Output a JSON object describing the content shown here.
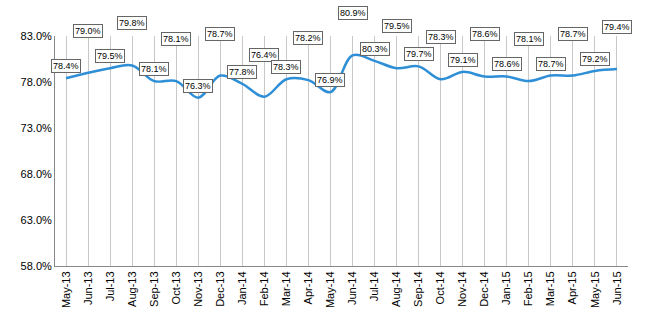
{
  "chart_data": {
    "type": "line",
    "categories": [
      "May-13",
      "Jun-13",
      "Jul-13",
      "Aug-13",
      "Sep-13",
      "Oct-13",
      "Nov-13",
      "Dec-13",
      "Jan-14",
      "Feb-14",
      "Mar-14",
      "Apr-14",
      "May-14",
      "Jun-14",
      "Jul-14",
      "Aug-14",
      "Sep-14",
      "Oct-14",
      "Nov-14",
      "Dec-14",
      "Jan-15",
      "Feb-15",
      "Mar-15",
      "Apr-15",
      "May-15",
      "Jun-15"
    ],
    "values": [
      78.4,
      79.0,
      79.5,
      79.8,
      78.1,
      78.1,
      76.3,
      78.7,
      77.8,
      76.4,
      78.3,
      78.2,
      76.9,
      80.9,
      80.3,
      79.5,
      79.7,
      78.3,
      79.1,
      78.6,
      78.6,
      78.1,
      78.7,
      78.7,
      79.2,
      79.4
    ],
    "value_labels": [
      "78.4%",
      "79.0%",
      "79.5%",
      "79.8%",
      "78.1%",
      "78.1%",
      "76.3%",
      "78.7%",
      "77.8%",
      "76.4%",
      "78.3%",
      "78.2%",
      "76.9%",
      "80.9%",
      "80.3%",
      "79.5%",
      "79.7%",
      "78.3%",
      "79.1%",
      "78.6%",
      "78.6%",
      "78.1%",
      "78.7%",
      "78.7%",
      "79.2%",
      "79.4%"
    ],
    "color": "#2f8fd6",
    "line_style": "smooth",
    "marker": "none",
    "data_labels": true,
    "grid": true,
    "ylim": [
      58,
      83
    ],
    "yticks": [
      {
        "value": 58,
        "label": "58.0%"
      },
      {
        "value": 63,
        "label": "63.0%"
      },
      {
        "value": 68,
        "label": "68.0%"
      },
      {
        "value": 73,
        "label": "73.0%"
      },
      {
        "value": 78,
        "label": "78.0%"
      },
      {
        "value": 83,
        "label": "83.0%"
      }
    ]
  }
}
